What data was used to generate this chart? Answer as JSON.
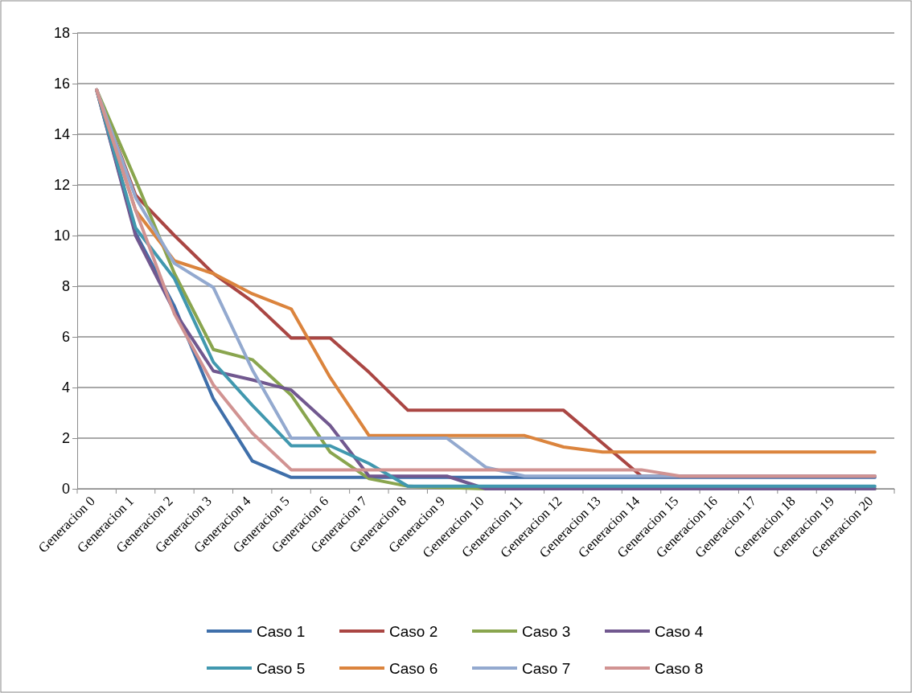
{
  "chart_data": {
    "type": "line",
    "categories": [
      "Generacion 0",
      "Generacion 1",
      "Generacion 2",
      "Generacion 3",
      "Generacion 4",
      "Generacion 5",
      "Generacion 6",
      "Generacion 7",
      "Generacion 8",
      "Generacion 9",
      "Generacion 10",
      "Generacion 11",
      "Generacion 12",
      "Generacion 13",
      "Generacion 14",
      "Generacion 15",
      "Generacion 16",
      "Generacion 17",
      "Generacion 18",
      "Generacion 19",
      "Generacion 20"
    ],
    "series": [
      {
        "name": "Caso 1",
        "color": "#3f6faa",
        "values": [
          15.75,
          10.1,
          7.2,
          3.55,
          1.1,
          0.45,
          0.45,
          0.45,
          0.45,
          0.45,
          0.45,
          0.45,
          0.45,
          0.45,
          0.45,
          0.45,
          0.45,
          0.45,
          0.45,
          0.45,
          0.45
        ]
      },
      {
        "name": "Caso 2",
        "color": "#aa4643",
        "values": [
          15.75,
          11.6,
          10.0,
          8.5,
          7.4,
          5.95,
          5.95,
          4.6,
          3.1,
          3.1,
          3.1,
          3.1,
          3.1,
          1.8,
          0.5,
          0.5,
          0.5,
          0.5,
          0.5,
          0.5,
          0.5
        ]
      },
      {
        "name": "Caso 3",
        "color": "#89a54e",
        "values": [
          15.75,
          12.2,
          8.5,
          5.5,
          5.1,
          3.7,
          1.45,
          0.4,
          0.1,
          0.05,
          0,
          0,
          0,
          0,
          0,
          0,
          0,
          0,
          0,
          0,
          0
        ]
      },
      {
        "name": "Caso 4",
        "color": "#71588f",
        "values": [
          15.75,
          10.0,
          7.0,
          4.65,
          4.3,
          3.9,
          2.5,
          0.5,
          0.5,
          0.5,
          0,
          0,
          0,
          0,
          0,
          0,
          0,
          0,
          0,
          0,
          0
        ]
      },
      {
        "name": "Caso 5",
        "color": "#4198af",
        "values": [
          15.75,
          10.3,
          8.3,
          5.0,
          3.3,
          1.7,
          1.7,
          1.0,
          0.1,
          0.1,
          0.1,
          0.1,
          0.1,
          0.1,
          0.1,
          0.1,
          0.1,
          0.1,
          0.1,
          0.1,
          0.1
        ]
      },
      {
        "name": "Caso 6",
        "color": "#db843d",
        "values": [
          15.75,
          11.0,
          9.0,
          8.5,
          7.7,
          7.1,
          4.4,
          2.1,
          2.1,
          2.1,
          2.1,
          2.1,
          1.65,
          1.45,
          1.45,
          1.45,
          1.45,
          1.45,
          1.45,
          1.45,
          1.45
        ]
      },
      {
        "name": "Caso 7",
        "color": "#93a9cf",
        "values": [
          15.75,
          11.5,
          8.9,
          7.95,
          4.7,
          2.0,
          2.0,
          2.0,
          2.0,
          2.0,
          0.85,
          0.5,
          0.5,
          0.5,
          0.5,
          0.5,
          0.5,
          0.5,
          0.5,
          0.5,
          0.5
        ]
      },
      {
        "name": "Caso 8",
        "color": "#d19392",
        "values": [
          15.75,
          11.0,
          6.9,
          4.1,
          2.2,
          0.75,
          0.75,
          0.75,
          0.75,
          0.75,
          0.75,
          0.75,
          0.75,
          0.75,
          0.75,
          0.5,
          0.5,
          0.5,
          0.5,
          0.5,
          0.5
        ]
      }
    ],
    "ylim": [
      0,
      18
    ],
    "yticks": [
      0,
      2,
      4,
      6,
      8,
      10,
      12,
      14,
      16,
      18
    ],
    "grid": "y",
    "legend": "bottom",
    "marker": "none",
    "line_style": "solid"
  }
}
